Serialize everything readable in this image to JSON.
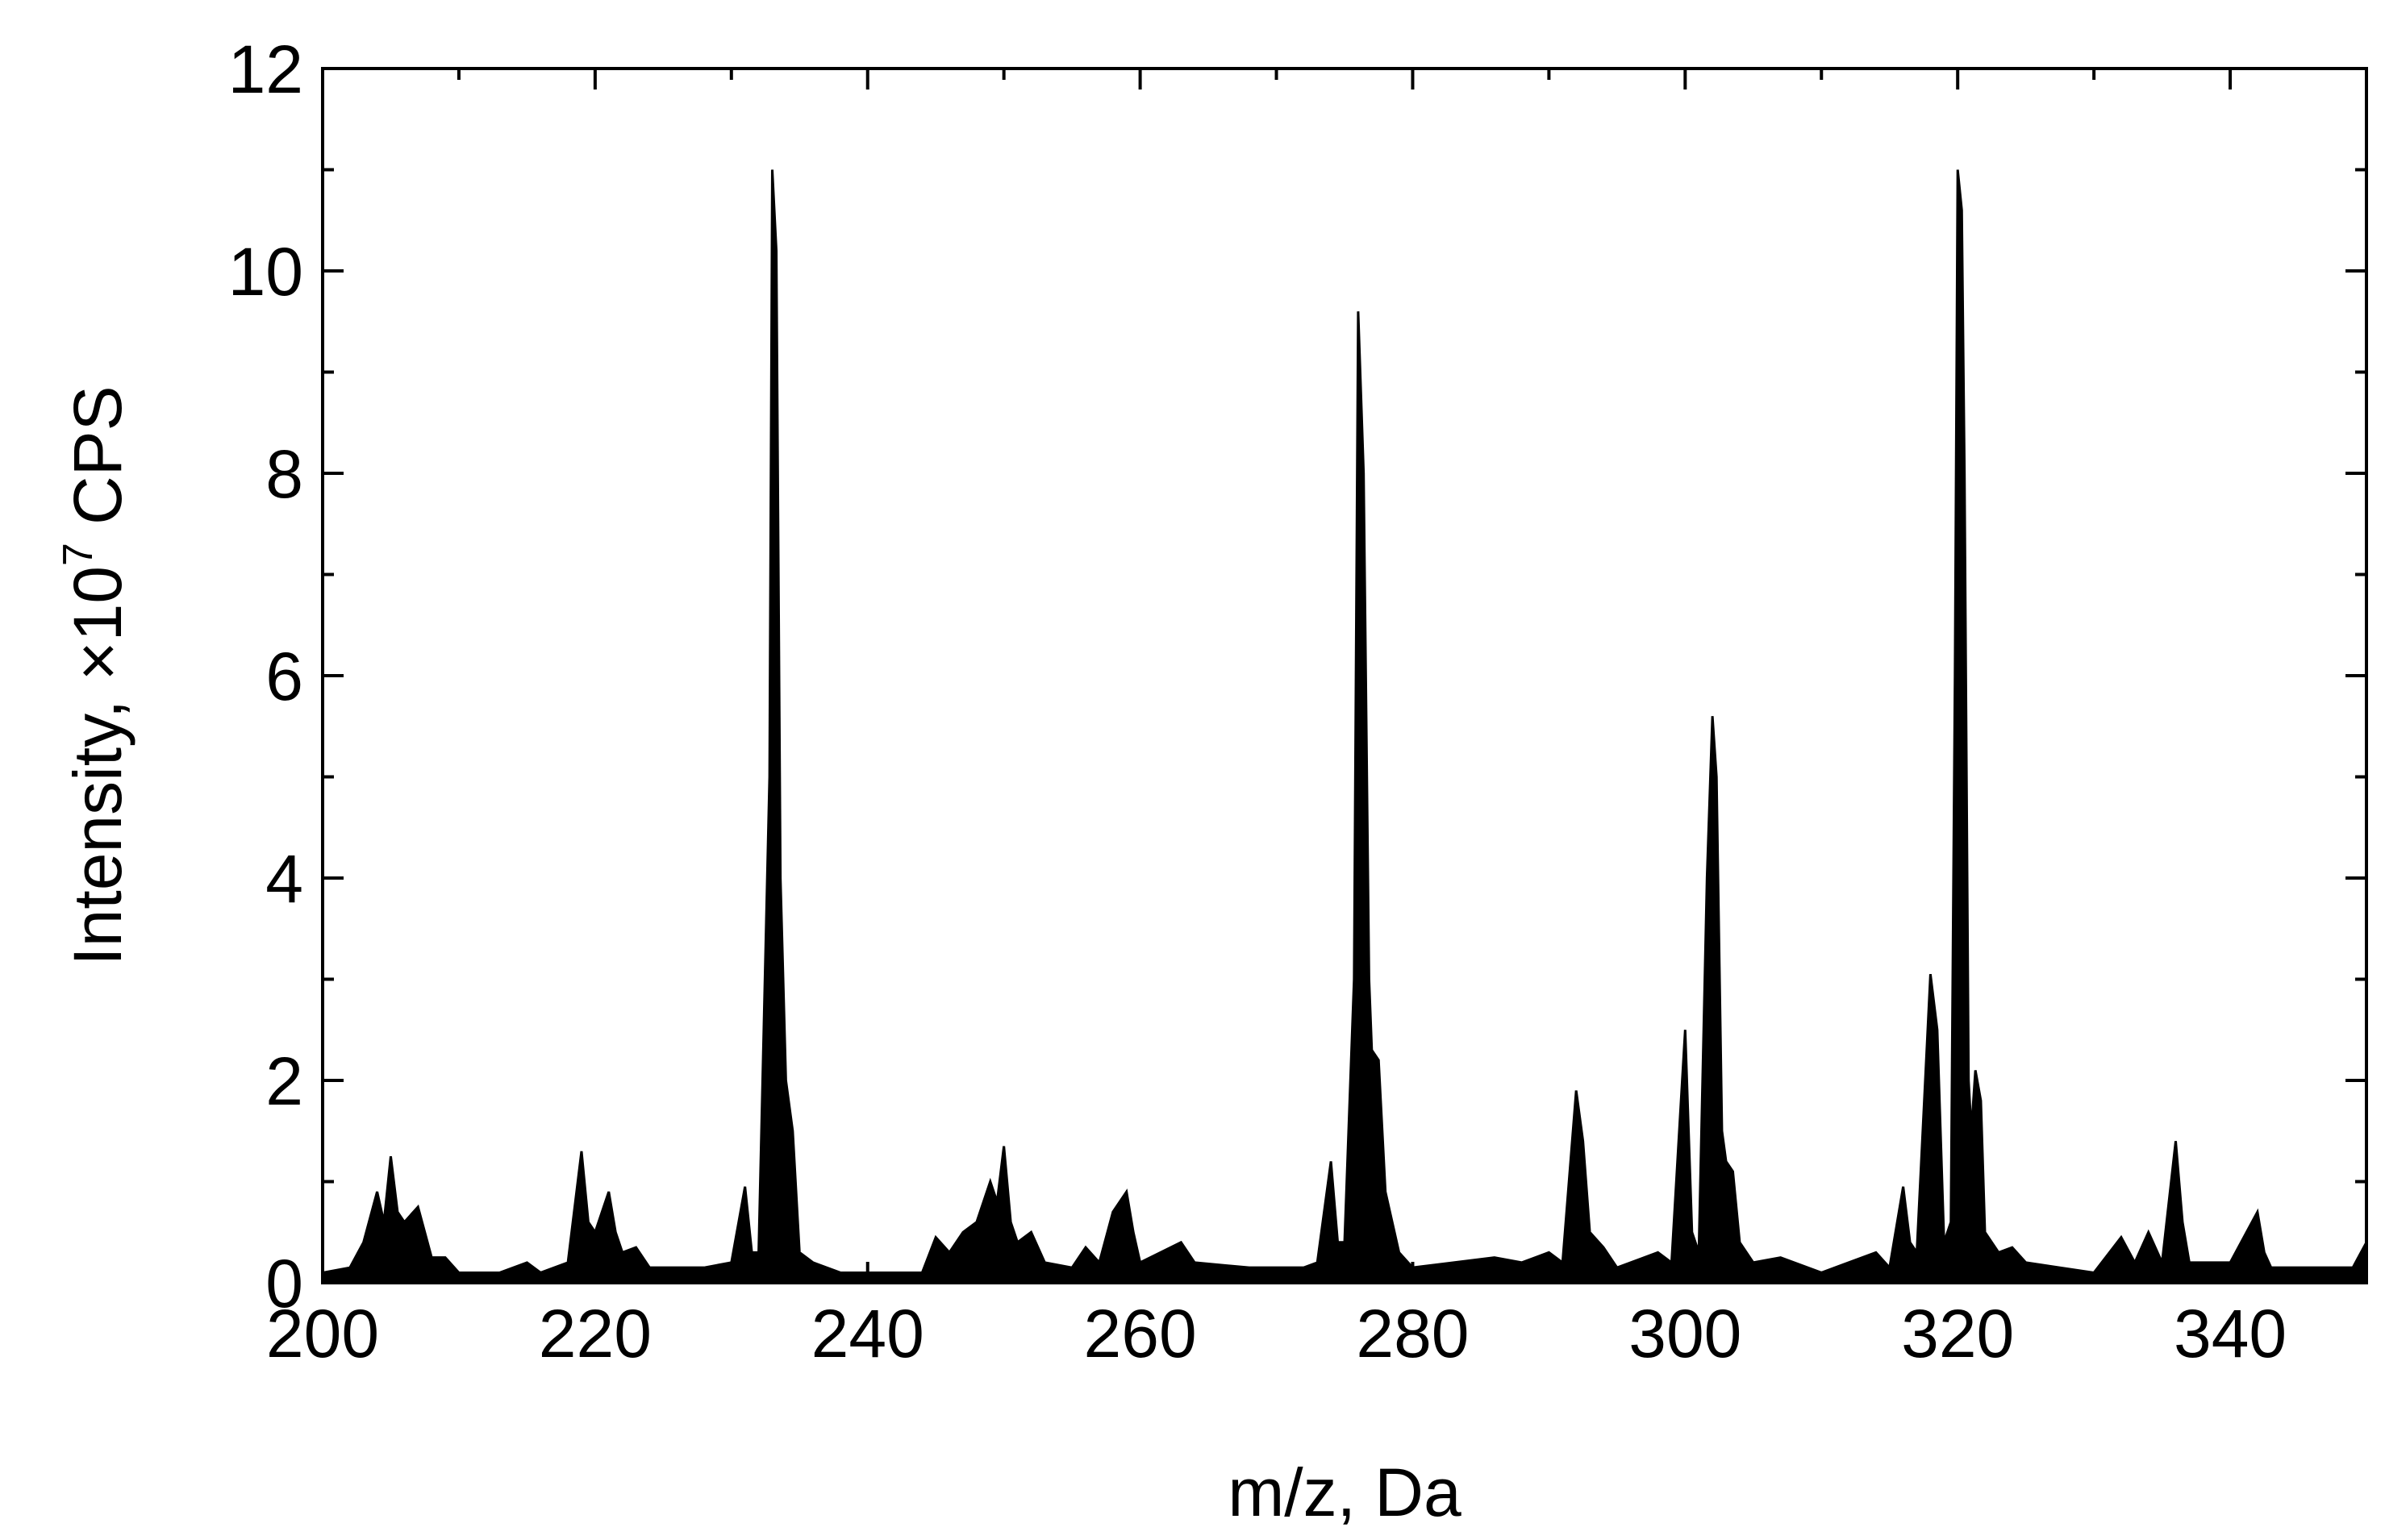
{
  "chart_data": {
    "type": "area",
    "xlabel": "m/z, Da",
    "ylabel": {
      "text": "Intensity, ×10",
      "superscript": "7",
      "unit": "CPS"
    },
    "color": "#000000",
    "xlim": [
      200,
      350
    ],
    "ylim": [
      0,
      12
    ],
    "xticks": [
      200,
      220,
      240,
      260,
      280,
      300,
      320,
      340
    ],
    "yticks": [
      0,
      2,
      4,
      6,
      8,
      10,
      12
    ],
    "xminorticks": [
      210,
      230,
      250,
      270,
      290,
      310,
      330,
      350
    ],
    "yminorticks": [
      1,
      3,
      5,
      7,
      9,
      11
    ],
    "mirror_ticks": true,
    "x": [
      200,
      202,
      203,
      204,
      204.5,
      205,
      205.5,
      206,
      207,
      208,
      209,
      210,
      213,
      215,
      216,
      218,
      219,
      219.5,
      220,
      221,
      221.5,
      222,
      223,
      224,
      228,
      230,
      231,
      231.5,
      232,
      232.8,
      233,
      233.3,
      233.6,
      234,
      234.5,
      235,
      236,
      238,
      244,
      245,
      246,
      247,
      248,
      249,
      249.5,
      250,
      250.5,
      251,
      252,
      253,
      255,
      256,
      257,
      258,
      259,
      259.5,
      260,
      263,
      264,
      268,
      272,
      273,
      274,
      274.5,
      275,
      275.7,
      276,
      276.4,
      276.8,
      277,
      277.5,
      278,
      279,
      280,
      286,
      288,
      290,
      291,
      292,
      292.5,
      293,
      294,
      295,
      298,
      299,
      300,
      300.5,
      301,
      301.6,
      302,
      302.3,
      302.7,
      303,
      303.5,
      304,
      305,
      307,
      310,
      314,
      315,
      316,
      316.5,
      317,
      318,
      318.5,
      319,
      319.5,
      319.8,
      320,
      320.3,
      320.5,
      320.8,
      321,
      321.3,
      321.7,
      322,
      323,
      324,
      325,
      330,
      332,
      333,
      334,
      335,
      336,
      336.5,
      337,
      340,
      342,
      342.5,
      343,
      349,
      350
    ],
    "values": [
      0.1,
      0.15,
      0.4,
      0.9,
      0.6,
      1.25,
      0.7,
      0.6,
      0.75,
      0.25,
      0.25,
      0.1,
      0.1,
      0.2,
      0.1,
      0.2,
      1.3,
      0.6,
      0.5,
      0.9,
      0.5,
      0.3,
      0.35,
      0.15,
      0.15,
      0.2,
      0.95,
      0.3,
      0.3,
      5,
      11.0,
      10.2,
      4,
      2.0,
      1.5,
      0.3,
      0.2,
      0.1,
      0.1,
      0.45,
      0.3,
      0.5,
      0.6,
      1.0,
      0.8,
      1.35,
      0.6,
      0.4,
      0.5,
      0.2,
      0.15,
      0.35,
      0.2,
      0.7,
      0.9,
      0.5,
      0.2,
      0.4,
      0.2,
      0.15,
      0.15,
      0.2,
      1.2,
      0.4,
      0.4,
      3,
      9.6,
      8,
      3,
      2.3,
      2.2,
      0.9,
      0.3,
      0.15,
      0.25,
      0.2,
      0.3,
      0.2,
      1.9,
      1.4,
      0.5,
      0.35,
      0.15,
      0.3,
      0.2,
      2.5,
      0.5,
      0.3,
      4,
      5.6,
      5,
      1.5,
      1.2,
      1.1,
      0.4,
      0.2,
      0.25,
      0.1,
      0.3,
      0.15,
      0.95,
      0.4,
      0.3,
      3.05,
      2.5,
      0.4,
      0.6,
      6,
      11.0,
      10.6,
      8,
      2,
      1.5,
      2.1,
      1.8,
      0.5,
      0.3,
      0.35,
      0.2,
      0.1,
      0.45,
      0.2,
      0.5,
      0.2,
      1.4,
      0.6,
      0.2,
      0.2,
      0.7,
      0.3,
      0.15,
      0.15,
      0.4
    ]
  }
}
